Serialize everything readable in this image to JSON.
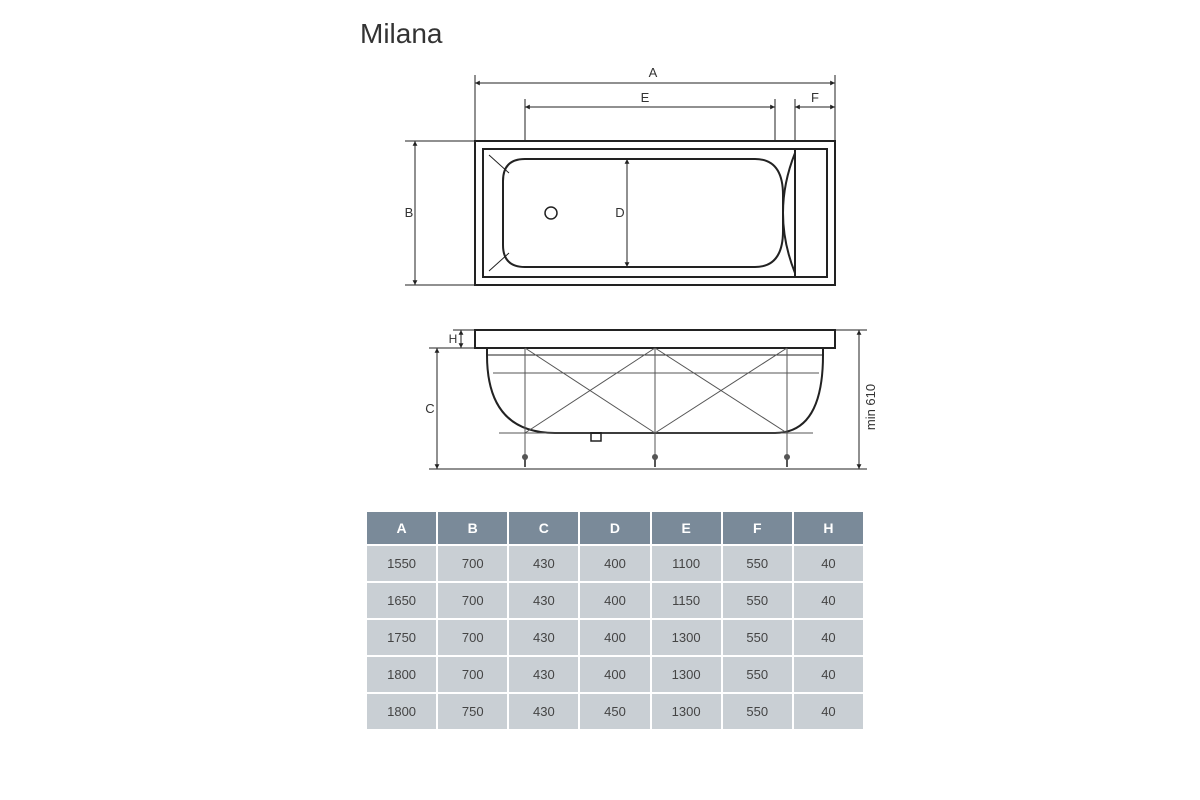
{
  "title": "Milana",
  "diagram": {
    "labels": {
      "A": "A",
      "B": "B",
      "C": "C",
      "D": "D",
      "E": "E",
      "F": "F",
      "H": "H"
    },
    "side_note": "min 610",
    "stroke": "#222222",
    "thin_stroke": "#555555",
    "text_color": "#333333",
    "bg": "#ffffff",
    "line_width_main": 2,
    "line_width_dim": 1,
    "font_size_title": 28,
    "font_size_dim": 13
  },
  "table": {
    "columns": [
      "A",
      "B",
      "C",
      "D",
      "E",
      "F",
      "H"
    ],
    "rows": [
      [
        "1550",
        "700",
        "430",
        "400",
        "1100",
        "550",
        "40"
      ],
      [
        "1650",
        "700",
        "430",
        "400",
        "1150",
        "550",
        "40"
      ],
      [
        "1750",
        "700",
        "430",
        "400",
        "1300",
        "550",
        "40"
      ],
      [
        "1800",
        "700",
        "430",
        "400",
        "1300",
        "550",
        "40"
      ],
      [
        "1800",
        "750",
        "430",
        "450",
        "1300",
        "550",
        "40"
      ]
    ],
    "header_bg": "#7a8a99",
    "header_fg": "#ffffff",
    "cell_bg": "#c9cfd4",
    "cell_fg": "#444444",
    "header_fontsize": 14,
    "cell_fontsize": 13
  }
}
